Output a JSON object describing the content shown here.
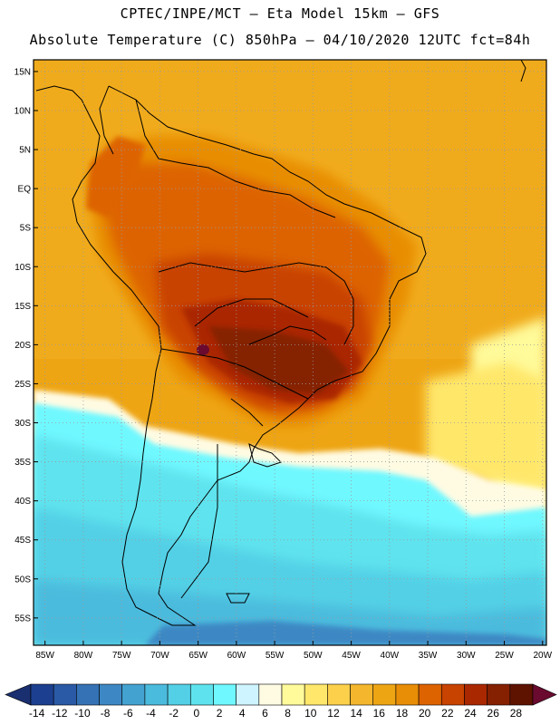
{
  "header": {
    "line1": "CPTEC/INPE/MCT –  Eta Model 15km – GFS",
    "line2": "Absolute Temperature (C) 850hPa – 04/10/2020 12UTC fct=84h"
  },
  "map": {
    "lat_labels": [
      "15N",
      "10N",
      "5N",
      "EQ",
      "5S",
      "10S",
      "15S",
      "20S",
      "25S",
      "30S",
      "35S",
      "40S",
      "45S",
      "50S",
      "55S"
    ],
    "lon_labels": [
      "85W",
      "80W",
      "75W",
      "70W",
      "65W",
      "60W",
      "55W",
      "50W",
      "45W",
      "40W",
      "35W",
      "30W",
      "25W",
      "20W"
    ],
    "lat_values": [
      15,
      10,
      5,
      0,
      -5,
      -10,
      -15,
      -20,
      -25,
      -30,
      -35,
      -40,
      -45,
      -50,
      -55
    ],
    "lon_values": [
      -85,
      -80,
      -75,
      -70,
      -65,
      -60,
      -55,
      -50,
      -45,
      -40,
      -35,
      -30,
      -25,
      -20
    ],
    "lat_range": [
      -58.5,
      16.5
    ],
    "lon_range": [
      -86.5,
      -19.5
    ]
  },
  "colorbar": {
    "labels": [
      "-14",
      "-12",
      "-10",
      "-8",
      "-6",
      "-4",
      "-2",
      "0",
      "2",
      "4",
      "6",
      "8",
      "10",
      "12",
      "14",
      "16",
      "18",
      "20",
      "22",
      "24",
      "26",
      "28"
    ],
    "colors": [
      "#1d3f8f",
      "#2a5aa6",
      "#3572b5",
      "#3d88c4",
      "#44a2d1",
      "#4bbbdd",
      "#53d0e6",
      "#5ee3ee",
      "#6ff8ff",
      "#cdf4ff",
      "#fffbe3",
      "#fffa9a",
      "#ffe76b",
      "#fcd04b",
      "#f4b62c",
      "#eea514",
      "#e88d06",
      "#dd6300",
      "#c84300",
      "#aa2800",
      "#852000",
      "#5e1200"
    ],
    "under_color": "#1a2f70",
    "over_color": "#6a0a2e"
  },
  "legend_units": "C"
}
